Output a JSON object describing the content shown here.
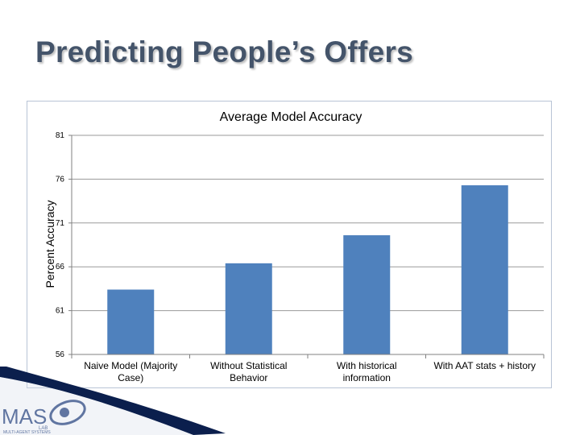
{
  "slide": {
    "title": "Predicting People’s Offers"
  },
  "colors": {
    "bar": "#4f81bd",
    "title": "#44546a",
    "logo_blue": "#1f3d7a"
  },
  "logo": {
    "text": "MAS",
    "subtext": "MULTI-AGENT SYSTEMS",
    "lab_text": "LAB"
  },
  "chart_data": {
    "type": "bar",
    "title": "Average Model Accuracy",
    "xlabel": "",
    "ylabel": "Percent Accuracy",
    "ylim": [
      56,
      81
    ],
    "yticks": [
      56,
      61,
      66,
      71,
      76,
      81
    ],
    "grid": true,
    "legend": "none",
    "categories": [
      [
        "Naive Model (Majority",
        "Case)"
      ],
      [
        "Without Statistical",
        "Behavior"
      ],
      [
        "With historical",
        "information"
      ],
      [
        "With AAT stats + history"
      ]
    ],
    "values": [
      63.4,
      66.4,
      69.6,
      75.3
    ]
  }
}
